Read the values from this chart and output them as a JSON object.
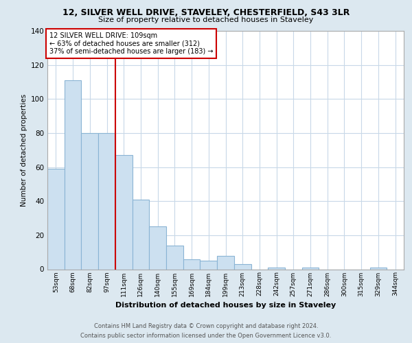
{
  "title1": "12, SILVER WELL DRIVE, STAVELEY, CHESTERFIELD, S43 3LR",
  "title2": "Size of property relative to detached houses in Staveley",
  "xlabel": "Distribution of detached houses by size in Staveley",
  "ylabel": "Number of detached properties",
  "bin_labels": [
    "53sqm",
    "68sqm",
    "82sqm",
    "97sqm",
    "111sqm",
    "126sqm",
    "140sqm",
    "155sqm",
    "169sqm",
    "184sqm",
    "199sqm",
    "213sqm",
    "228sqm",
    "242sqm",
    "257sqm",
    "271sqm",
    "286sqm",
    "300sqm",
    "315sqm",
    "329sqm",
    "344sqm"
  ],
  "bar_heights": [
    59,
    111,
    80,
    80,
    67,
    41,
    25,
    14,
    6,
    5,
    8,
    3,
    0,
    1,
    0,
    1,
    0,
    0,
    0,
    1,
    0
  ],
  "bar_color": "#cce0f0",
  "bar_edge_color": "#8ab4d4",
  "vline_color": "#cc0000",
  "annotation_box_text": "12 SILVER WELL DRIVE: 109sqm\n← 63% of detached houses are smaller (312)\n37% of semi-detached houses are larger (183) →",
  "ylim": [
    0,
    140
  ],
  "yticks": [
    0,
    20,
    40,
    60,
    80,
    100,
    120,
    140
  ],
  "background_color": "#dce8f0",
  "plot_bg_color": "#ffffff",
  "grid_color": "#c8d8e8",
  "footer_line1": "Contains HM Land Registry data © Crown copyright and database right 2024.",
  "footer_line2": "Contains public sector information licensed under the Open Government Licence v3.0."
}
